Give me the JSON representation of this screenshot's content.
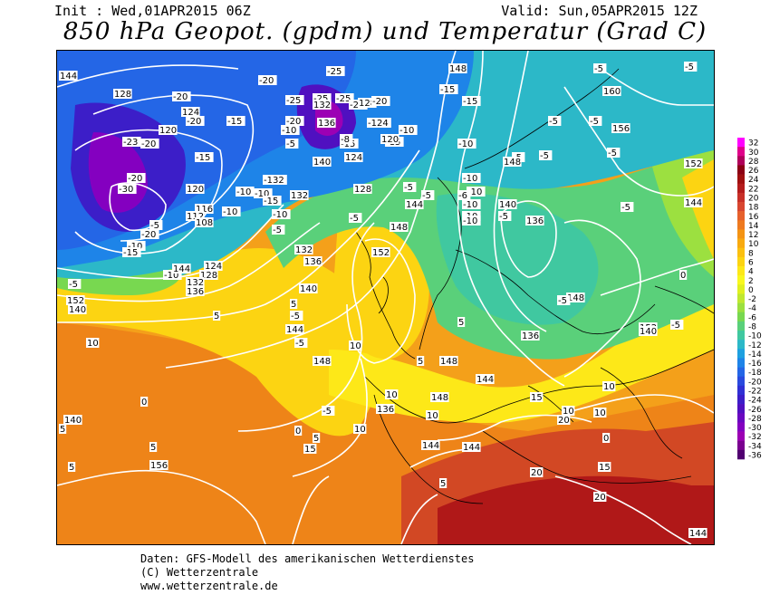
{
  "header": {
    "init": "Init : Wed,01APR2015 06Z",
    "valid": "Valid: Sun,05APR2015 12Z",
    "title": "850 hPa Geopot. (gpdm) und Temperatur (Grad C)"
  },
  "footer": {
    "line1": "Daten: GFS-Modell des amerikanischen Wetterdienstes",
    "line2": "(C) Wetterzentrale",
    "line3": "www.wetterzentrale.de"
  },
  "colorbar": {
    "labels": [
      "32",
      "30",
      "28",
      "26",
      "24",
      "22",
      "20",
      "18",
      "16",
      "14",
      "12",
      "10",
      "8",
      "6",
      "4",
      "2",
      "0",
      "-2",
      "-4",
      "-6",
      "-8",
      "-10",
      "-12",
      "-14",
      "-16",
      "-18",
      "-20",
      "-22",
      "-24",
      "-26",
      "-28",
      "-30",
      "-32",
      "-34",
      "-36"
    ],
    "colors": [
      "#ff00ff",
      "#e0008a",
      "#b0005a",
      "#8c0014",
      "#a01010",
      "#b41c1c",
      "#c83028",
      "#d84630",
      "#e6602c",
      "#ee7a20",
      "#f49414",
      "#f8aa10",
      "#fbc010",
      "#fcd412",
      "#fde818",
      "#f8f81e",
      "#e0f020",
      "#c0e830",
      "#9ce040",
      "#78d850",
      "#5ad07a",
      "#40c8a0",
      "#2cb8c8",
      "#1ea0e0",
      "#1e84e8",
      "#2466e6",
      "#2a4ade",
      "#3030d4",
      "#3c1ec8",
      "#5010c0",
      "#6a08c0",
      "#8400c0",
      "#9c00b4",
      "#7a0090",
      "#500070"
    ]
  },
  "map": {
    "contour_labels": [
      {
        "t": "144"
      },
      {
        "t": "148"
      },
      {
        "t": "-5"
      },
      {
        "t": "160"
      },
      {
        "t": "-5"
      },
      {
        "t": "-15"
      },
      {
        "t": "-25"
      },
      {
        "t": "-20"
      },
      {
        "t": "-25"
      },
      {
        "t": "128"
      },
      {
        "t": "-20"
      },
      {
        "t": "-25"
      },
      {
        "t": "-25"
      },
      {
        "t": "132"
      },
      {
        "t": "-21"
      },
      {
        "t": "128"
      },
      {
        "t": "-20"
      },
      {
        "t": "124"
      },
      {
        "t": "-20"
      },
      {
        "t": "-15"
      },
      {
        "t": "-20"
      },
      {
        "t": "136"
      },
      {
        "t": "-124"
      },
      {
        "t": "-15"
      },
      {
        "t": "120"
      },
      {
        "t": "-10"
      },
      {
        "t": "-15"
      },
      {
        "t": "-15"
      },
      {
        "t": "-5"
      },
      {
        "t": "156"
      },
      {
        "t": "-23"
      },
      {
        "t": "-20"
      },
      {
        "t": "-8"
      },
      {
        "t": "-10"
      },
      {
        "t": "120"
      },
      {
        "t": "-10"
      },
      {
        "t": "-5"
      },
      {
        "t": "-15"
      },
      {
        "t": "140"
      },
      {
        "t": "124"
      },
      {
        "t": "148"
      },
      {
        "t": "-5"
      },
      {
        "t": "-5"
      },
      {
        "t": "-5"
      },
      {
        "t": "-5"
      },
      {
        "t": "152"
      },
      {
        "t": "-20"
      },
      {
        "t": "-30"
      },
      {
        "t": "120"
      },
      {
        "t": "-10"
      },
      {
        "t": "-132"
      },
      {
        "t": "-10"
      },
      {
        "t": "128"
      },
      {
        "t": "-5"
      },
      {
        "t": "-10"
      },
      {
        "t": "-10"
      },
      {
        "t": "-10"
      },
      {
        "t": "132"
      },
      {
        "t": "-15"
      },
      {
        "t": "116"
      },
      {
        "t": "-10"
      },
      {
        "t": "112"
      },
      {
        "t": "-10"
      },
      {
        "t": "-5"
      },
      {
        "t": "-6"
      },
      {
        "t": "140"
      },
      {
        "t": "-5"
      },
      {
        "t": "-10"
      },
      {
        "t": "144"
      },
      {
        "t": "108"
      },
      {
        "t": "-5"
      },
      {
        "t": "136"
      },
      {
        "t": "-10"
      },
      {
        "t": "-5"
      },
      {
        "t": "148"
      },
      {
        "t": "-20"
      },
      {
        "t": "-5"
      },
      {
        "t": "144"
      },
      {
        "t": "-5"
      },
      {
        "t": "-10"
      },
      {
        "t": "132"
      },
      {
        "t": "152"
      },
      {
        "t": "-15"
      },
      {
        "t": "136"
      },
      {
        "t": "124"
      },
      {
        "t": "-10"
      },
      {
        "t": "128"
      },
      {
        "t": "-5"
      },
      {
        "t": "132"
      },
      {
        "t": "140"
      },
      {
        "t": "148"
      },
      {
        "t": "5"
      },
      {
        "t": "152"
      },
      {
        "t": "136"
      },
      {
        "t": "144"
      },
      {
        "t": "-5"
      },
      {
        "t": "140"
      },
      {
        "t": "5"
      },
      {
        "t": "144"
      },
      {
        "t": "0"
      },
      {
        "t": "148"
      },
      {
        "t": "-5"
      },
      {
        "t": "-5"
      },
      {
        "t": "-5"
      },
      {
        "t": "5"
      },
      {
        "t": "10"
      },
      {
        "t": "152"
      },
      {
        "t": "144"
      },
      {
        "t": "148"
      },
      {
        "t": "10"
      },
      {
        "t": "0"
      },
      {
        "t": "-5"
      },
      {
        "t": "136"
      },
      {
        "t": "140"
      },
      {
        "t": "5"
      },
      {
        "t": "5"
      },
      {
        "t": "144"
      },
      {
        "t": "148"
      },
      {
        "t": "136"
      },
      {
        "t": "10"
      },
      {
        "t": "10"
      },
      {
        "t": "140"
      },
      {
        "t": "10"
      },
      {
        "t": "10"
      },
      {
        "t": "5"
      },
      {
        "t": "10"
      },
      {
        "t": "5"
      },
      {
        "t": "0"
      },
      {
        "t": "0"
      },
      {
        "t": "15"
      },
      {
        "t": "15"
      },
      {
        "t": "10"
      },
      {
        "t": "5"
      },
      {
        "t": "144"
      },
      {
        "t": "20"
      },
      {
        "t": "15"
      },
      {
        "t": "5"
      },
      {
        "t": "20"
      },
      {
        "t": "156"
      },
      {
        "t": "20"
      },
      {
        "t": "144"
      }
    ]
  }
}
